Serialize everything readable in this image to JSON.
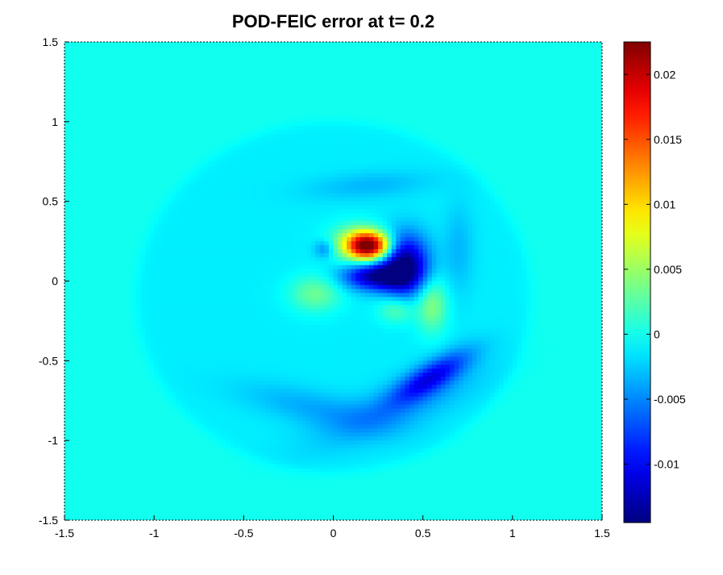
{
  "chart_data": {
    "type": "heatmap",
    "title": "POD-FEIC error at t= 0.2",
    "xlabel": "",
    "ylabel": "",
    "xlim": [
      -1.5,
      1.5
    ],
    "ylim": [
      -1.5,
      1.5
    ],
    "x_ticks": [
      "-1.5",
      "-1",
      "-0.5",
      "0",
      "0.5",
      "1",
      "1.5"
    ],
    "x_tick_values": [
      -1.5,
      -1,
      -0.5,
      0,
      0.5,
      1,
      1.5
    ],
    "y_ticks": [
      "1.5",
      "1",
      "0.5",
      "0",
      "-0.5",
      "-1",
      "-1.5"
    ],
    "y_tick_values": [
      1.5,
      1,
      0.5,
      0,
      -0.5,
      -1,
      -1.5
    ],
    "colorbar": {
      "colormap": "jet",
      "range": [
        -0.0145,
        0.0225
      ],
      "ticks": [
        "0.02",
        "0.015",
        "0.01",
        "0.005",
        "0",
        "-0.005",
        "-0.01"
      ],
      "tick_values": [
        0.02,
        0.015,
        0.01,
        0.005,
        0,
        -0.005,
        -0.01
      ]
    },
    "background_value": 0.0,
    "disk": {
      "center": [
        0.0,
        -0.1
      ],
      "radius": 1.1,
      "value": -0.0012
    },
    "features": [
      {
        "center": [
          0.2,
          0.22
        ],
        "sigma": [
          0.08,
          0.06
        ],
        "value": 0.0225
      },
      {
        "center": [
          0.12,
          0.24
        ],
        "sigma": [
          0.1,
          0.08
        ],
        "value": 0.006
      },
      {
        "center": [
          0.4,
          0.1
        ],
        "sigma": [
          0.09,
          0.13
        ],
        "value": -0.0138
      },
      {
        "center": [
          0.23,
          0.03
        ],
        "sigma": [
          0.12,
          0.06
        ],
        "value": -0.012
      },
      {
        "center": [
          -0.05,
          0.2
        ],
        "sigma": [
          0.04,
          0.04
        ],
        "value": -0.004
      },
      {
        "center": [
          -0.1,
          -0.08
        ],
        "sigma": [
          0.1,
          0.08
        ],
        "value": 0.0045
      },
      {
        "center": [
          0.55,
          -0.15
        ],
        "sigma": [
          0.06,
          0.12
        ],
        "value": 0.0055
      },
      {
        "center": [
          0.35,
          -0.18
        ],
        "sigma": [
          0.07,
          0.06
        ],
        "value": 0.004
      },
      {
        "center": [
          0.55,
          -0.6
        ],
        "sigma": [
          0.18,
          0.06
        ],
        "value": -0.0085,
        "angle_deg": 35
      },
      {
        "center": [
          0.35,
          -0.8
        ],
        "sigma": [
          0.35,
          0.1
        ],
        "value": -0.003,
        "angle_deg": 25
      },
      {
        "center": [
          -0.1,
          -0.8
        ],
        "sigma": [
          0.3,
          0.08
        ],
        "value": -0.0025,
        "angle_deg": -15
      },
      {
        "center": [
          0.2,
          0.6
        ],
        "sigma": [
          0.25,
          0.06
        ],
        "value": -0.002,
        "angle_deg": 5
      },
      {
        "center": [
          0.7,
          0.2
        ],
        "sigma": [
          0.06,
          0.2
        ],
        "value": -0.002
      }
    ]
  }
}
